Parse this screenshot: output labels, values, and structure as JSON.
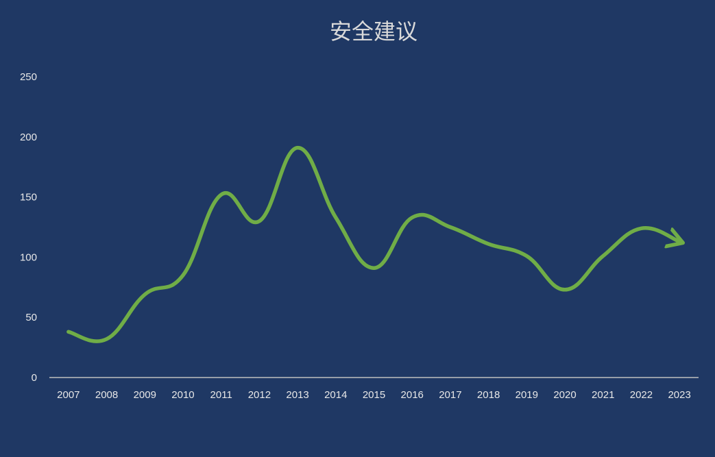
{
  "chart_data": {
    "type": "line",
    "title": "安全建议",
    "xlabel": "",
    "ylabel": "",
    "categories": [
      "2007",
      "2008",
      "2009",
      "2010",
      "2011",
      "2012",
      "2013",
      "2014",
      "2015",
      "2016",
      "2017",
      "2018",
      "2019",
      "2020",
      "2021",
      "2022",
      "2023"
    ],
    "series": [
      {
        "values": [
          38,
          32,
          69,
          85,
          152,
          130,
          191,
          133,
          91,
          133,
          125,
          111,
          101,
          73,
          101,
          124,
          113
        ],
        "color": "#70ad47"
      }
    ],
    "ylim": [
      0,
      250
    ],
    "yticks": [
      0,
      50,
      100,
      150,
      200,
      250
    ],
    "grid": false,
    "legend": "none",
    "smooth": true,
    "end_marker": "arrow"
  }
}
